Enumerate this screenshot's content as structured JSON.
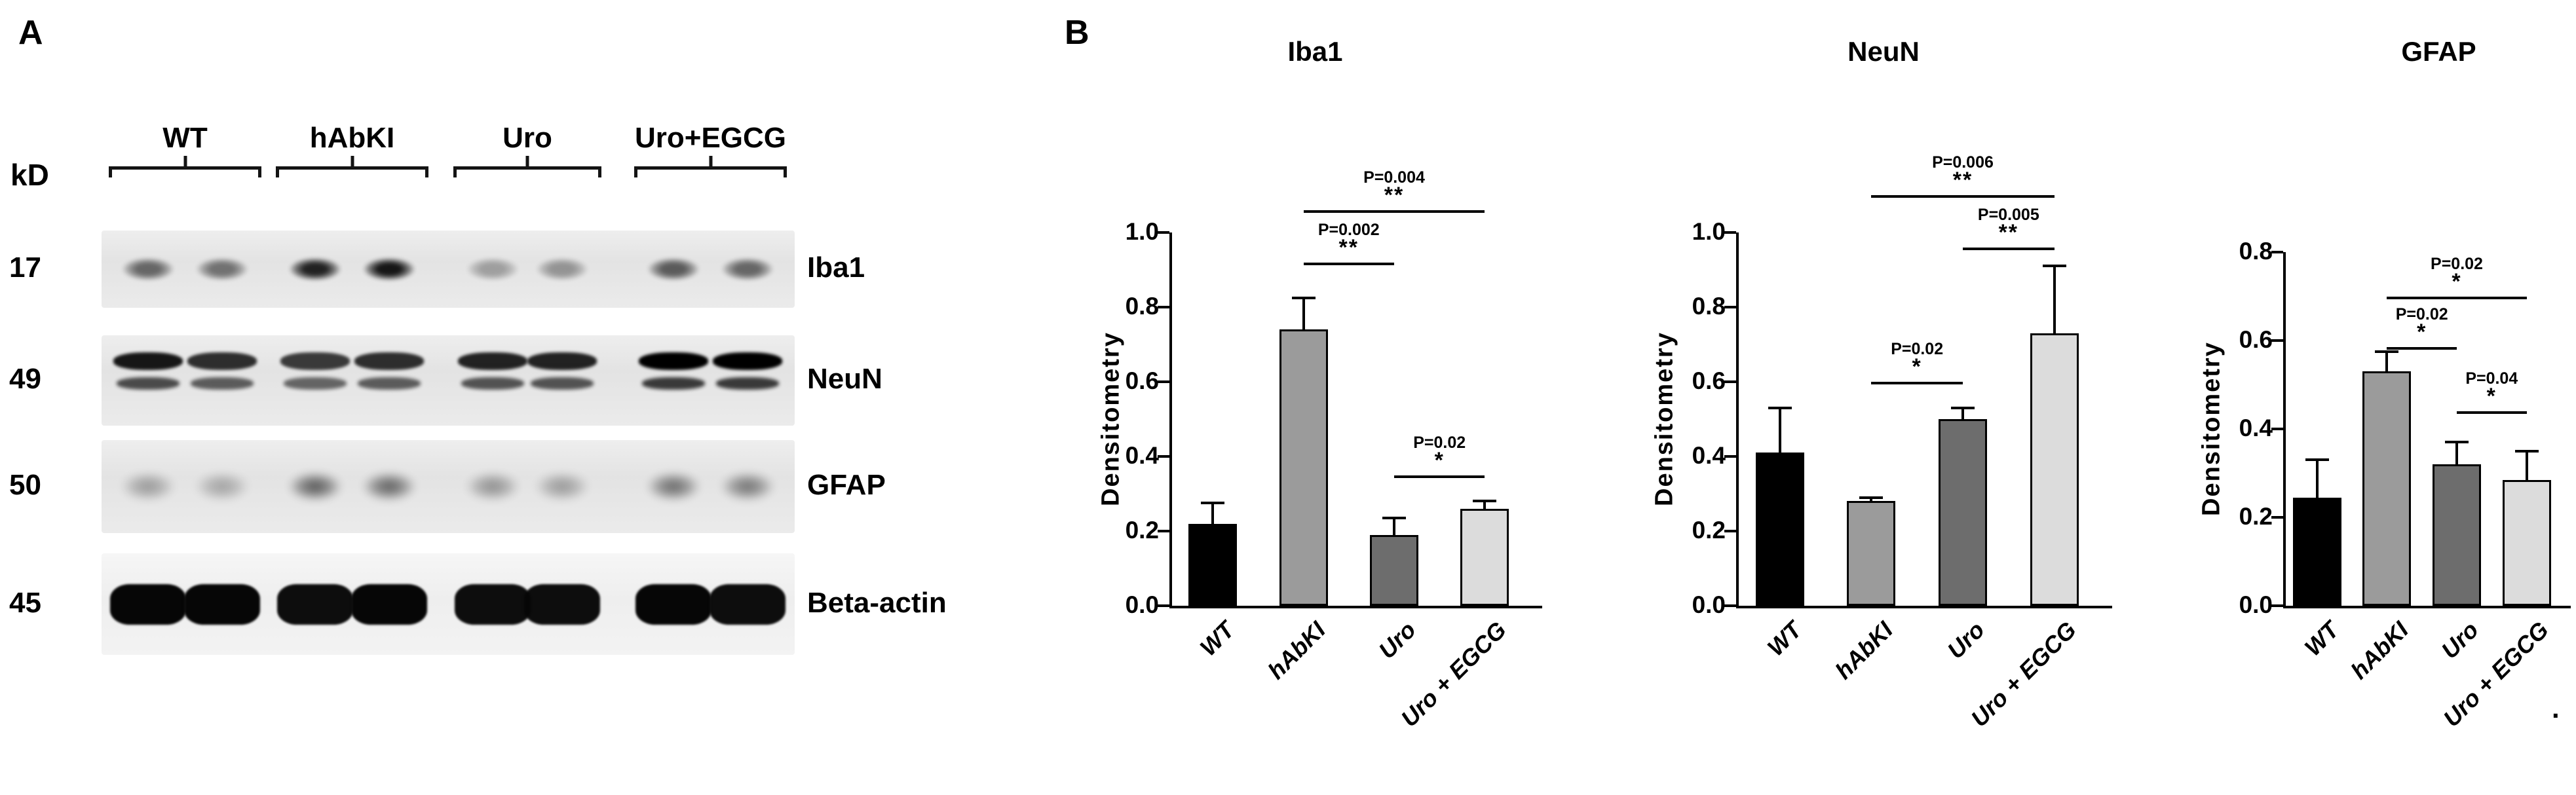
{
  "panels": {
    "a_label": "A",
    "b_label": "B",
    "trailing_period": "."
  },
  "blot": {
    "kd_label": "kD",
    "groups": [
      "WT",
      "hAbKI",
      "Uro",
      "Uro+EGCG"
    ],
    "rows": [
      {
        "kd": "17",
        "protein": "Iba1",
        "style": "single",
        "intensities": [
          0.55,
          0.5,
          0.85,
          0.9,
          0.3,
          0.35,
          0.6,
          0.55
        ]
      },
      {
        "kd": "49",
        "protein": "NeuN",
        "style": "doublet",
        "intensities": [
          0.9,
          0.8,
          0.75,
          0.8,
          0.85,
          0.85,
          1.0,
          1.0
        ]
      },
      {
        "kd": "50",
        "protein": "GFAP",
        "style": "diffuse",
        "intensities": [
          0.4,
          0.35,
          0.75,
          0.7,
          0.45,
          0.4,
          0.65,
          0.6
        ]
      },
      {
        "kd": "45",
        "protein": "Beta-actin",
        "style": "heavy",
        "intensities": [
          1.0,
          1.0,
          0.97,
          1.0,
          0.97,
          0.97,
          1.0,
          0.97
        ]
      }
    ]
  },
  "chart_data": [
    {
      "type": "bar",
      "title": "Iba1",
      "ylabel": "Densitometry",
      "categories": [
        "WT",
        "hAbKI",
        "Uro",
        "Uro + EGCG"
      ],
      "values": [
        0.22,
        0.74,
        0.19,
        0.26
      ],
      "errors": [
        0.055,
        0.085,
        0.045,
        0.02
      ],
      "ylim": [
        0,
        1.0
      ],
      "yticks": [
        "0.0",
        "0.2",
        "0.4",
        "0.6",
        "0.8",
        "1.0"
      ],
      "bar_colors": [
        "#000000",
        "#9b9b9b",
        "#6d6d6d",
        "#dcdcdc"
      ],
      "grid": false,
      "significance": [
        {
          "from": 2,
          "to": 3,
          "label": "P=0.02",
          "stars": "*",
          "y": 0.35
        },
        {
          "from": 1,
          "to": 2,
          "label": "P=0.002",
          "stars": "**",
          "y": 0.92
        },
        {
          "from": 1,
          "to": 3,
          "label": "P=0.004",
          "stars": "**",
          "y": 1.06
        }
      ]
    },
    {
      "type": "bar",
      "title": "NeuN",
      "ylabel": "Densitometry",
      "categories": [
        "WT",
        "hAbKI",
        "Uro",
        "Uro + EGCG"
      ],
      "values": [
        0.41,
        0.28,
        0.5,
        0.73
      ],
      "errors": [
        0.12,
        0.01,
        0.03,
        0.18
      ],
      "ylim": [
        0,
        1.0
      ],
      "yticks": [
        "0.0",
        "0.2",
        "0.4",
        "0.6",
        "0.8",
        "1.0"
      ],
      "bar_colors": [
        "#000000",
        "#9b9b9b",
        "#6d6d6d",
        "#dcdcdc"
      ],
      "grid": false,
      "significance": [
        {
          "from": 1,
          "to": 2,
          "label": "P=0.02",
          "stars": "*",
          "y": 0.6
        },
        {
          "from": 2,
          "to": 3,
          "label": "P=0.005",
          "stars": "**",
          "y": 0.96
        },
        {
          "from": 1,
          "to": 3,
          "label": "P=0.006",
          "stars": "**",
          "y": 1.1
        }
      ]
    },
    {
      "type": "bar",
      "title": "GFAP",
      "ylabel": "Densitometry",
      "categories": [
        "WT",
        "hAbKI",
        "Uro",
        "Uro + EGCG"
      ],
      "values": [
        0.245,
        0.53,
        0.32,
        0.285
      ],
      "errors": [
        0.085,
        0.045,
        0.05,
        0.065
      ],
      "ylim": [
        0,
        0.8
      ],
      "yticks": [
        "0.0",
        "0.2",
        "0.4",
        "0.6",
        "0.8"
      ],
      "bar_colors": [
        "#000000",
        "#9b9b9b",
        "#6d6d6d",
        "#dcdcdc"
      ],
      "grid": false,
      "significance": [
        {
          "from": 2,
          "to": 3,
          "label": "P=0.04",
          "stars": "*",
          "y": 0.44
        },
        {
          "from": 1,
          "to": 2,
          "label": "P=0.02",
          "stars": "*",
          "y": 0.585
        },
        {
          "from": 1,
          "to": 3,
          "label": "P=0.02",
          "stars": "*",
          "y": 0.7
        }
      ]
    }
  ]
}
